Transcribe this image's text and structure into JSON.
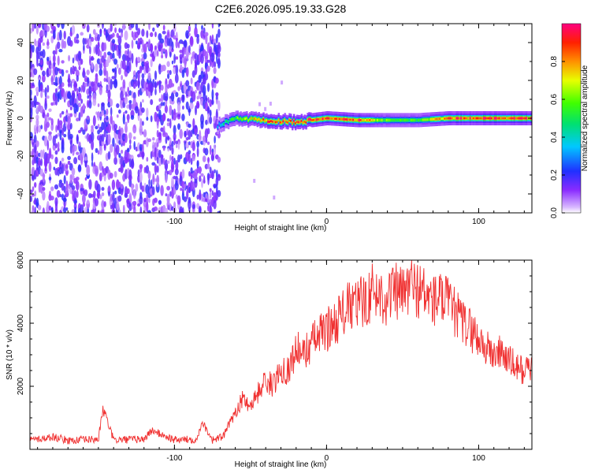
{
  "title": "C2E6.2026.095.19.33.G28",
  "chart_data": [
    {
      "type": "heatmap",
      "panel": "spectrogram",
      "title": "C2E6.2026.095.19.33.G28",
      "xlabel": "Height of straight line (km)",
      "ylabel": "Frequency (Hz)",
      "xlim": [
        -195,
        135
      ],
      "ylim": [
        -50,
        50
      ],
      "xticks": [
        -100,
        0,
        100
      ],
      "xtick_labels": [
        "-100",
        "0",
        "100"
      ],
      "yticks": [
        -40,
        -20,
        0,
        20,
        40
      ],
      "ytick_labels": [
        "-40",
        "-20",
        "0",
        "20",
        "40"
      ],
      "noise_region_km": [
        -195,
        -70
      ],
      "signal_trace": {
        "description_points_km": [
          -72,
          -60,
          -40,
          -20,
          0,
          20,
          40,
          60,
          80,
          100,
          135
        ],
        "frequency_hz": [
          -4,
          0,
          -1,
          -2,
          0,
          -1,
          -1,
          -1,
          0,
          0,
          0
        ],
        "peak_amplitude": [
          0.35,
          0.55,
          0.85,
          0.9,
          0.9,
          0.9,
          0.55,
          0.55,
          0.85,
          0.9,
          0.9
        ]
      },
      "colorbar": {
        "label": "Normalized spectral amplitude",
        "range": [
          0.0,
          1.0
        ],
        "ticks": [
          0.0,
          0.2,
          0.4,
          0.6,
          0.8
        ],
        "tick_labels": [
          "0.0",
          "0.2",
          "0.4",
          "0.6",
          "0.8"
        ]
      }
    },
    {
      "type": "line",
      "panel": "snr",
      "xlabel": "Height of straight line (km)",
      "ylabel": "SNR (10 * v/v)",
      "xlim": [
        -195,
        135
      ],
      "ylim": [
        0,
        6000
      ],
      "xticks": [
        -100,
        0,
        100
      ],
      "xtick_labels": [
        "-100",
        "0",
        "100"
      ],
      "yticks": [
        2000,
        4000,
        6000
      ],
      "ytick_labels": [
        "2000",
        "4000",
        "6000"
      ],
      "color": "#f03030",
      "series": [
        {
          "name": "SNR",
          "x": [
            -195,
            -185,
            -180,
            -170,
            -150,
            -147,
            -140,
            -120,
            -115,
            -100,
            -85,
            -82,
            -75,
            -68,
            -60,
            -55,
            -50,
            -45,
            -40,
            -35,
            -30,
            -25,
            -20,
            -15,
            -10,
            -5,
            0,
            5,
            10,
            15,
            20,
            25,
            30,
            35,
            40,
            45,
            50,
            55,
            60,
            65,
            70,
            75,
            80,
            85,
            90,
            95,
            100,
            105,
            110,
            115,
            120,
            125,
            130,
            135
          ],
          "values": [
            300,
            350,
            400,
            280,
            320,
            1300,
            300,
            320,
            600,
            300,
            320,
            900,
            300,
            400,
            1200,
            1600,
            1400,
            1800,
            2200,
            2000,
            2600,
            2500,
            3200,
            3000,
            3400,
            3600,
            3800,
            4000,
            4300,
            4500,
            4600,
            4700,
            5000,
            4900,
            4800,
            5000,
            4900,
            5200,
            5100,
            4900,
            4700,
            4800,
            4600,
            4300,
            4000,
            3800,
            3500,
            3200,
            3000,
            3100,
            2800,
            2600,
            2500,
            2600
          ]
        }
      ]
    }
  ]
}
